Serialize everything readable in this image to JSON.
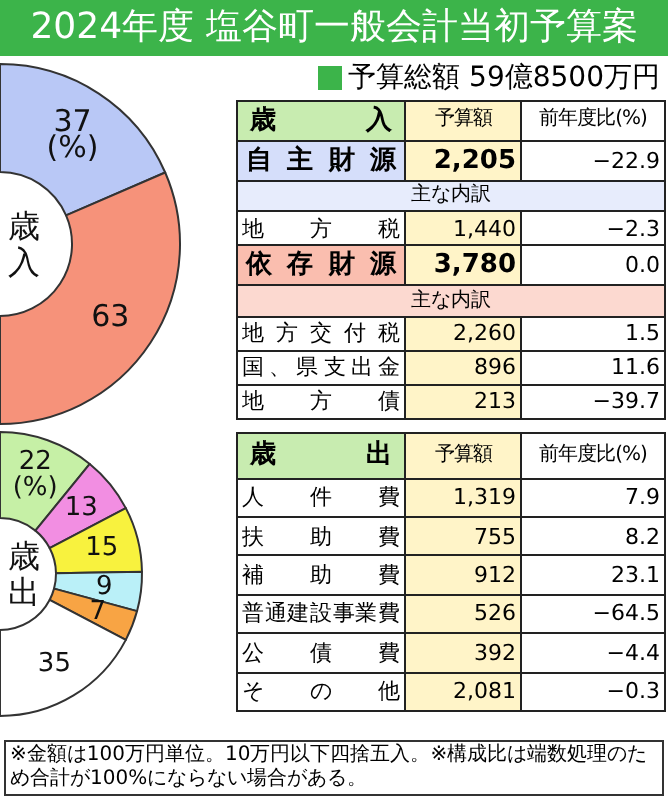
{
  "chart_data": [
    {
      "type": "other",
      "title": "2024年度 塩谷町一般会計当初予算案",
      "subtitle": "予算総額 59億8500万円",
      "color": "#3cb44a",
      "annotations": [
        "※金額は100万円単位。10万円以下四捨五入。",
        "※構成比は端数処理のため合計が100%にならない場合がある。"
      ]
    },
    {
      "type": "donut",
      "title": "歳入",
      "categories": [
        null,
        null
      ],
      "values": [
        37,
        63
      ],
      "colors": [
        "#b9c8f6",
        "#f6927a"
      ],
      "value_labels": [
        "37\n(%)",
        "63"
      ]
    },
    {
      "type": "other",
      "categories": [
        "歳入",
        "予算額",
        "前年度比(%)"
      ],
      "y_categories": [
        "自主財源",
        "主な内訳",
        "地方税",
        "依存財源",
        "主な内訳",
        "地方交付税",
        "国、県支出金",
        "地方債"
      ],
      "cell_labels": [
        [
          "2,205",
          "−22.9"
        ],
        [
          null,
          null
        ],
        [
          "1,440",
          "−2.3"
        ],
        [
          "3,780",
          "0.0"
        ],
        [
          null,
          null
        ],
        [
          "2,260",
          "1.5"
        ],
        [
          "896",
          "11.6"
        ],
        [
          "213",
          "−39.7"
        ]
      ]
    },
    {
      "type": "donut",
      "title": "歳出",
      "categories": [
        null,
        null,
        null,
        null,
        null,
        null
      ],
      "values": [
        22,
        13,
        15,
        9,
        7,
        35
      ],
      "colors": [
        "#c6f0a6",
        "#f28ee2",
        "#f8f23e",
        "#baf0f8",
        "#f8a444",
        "#ffffff"
      ],
      "value_labels": [
        "22\n(%)",
        "13",
        "15",
        "9",
        "7",
        "35"
      ]
    },
    {
      "type": "other",
      "categories": [
        "歳出",
        "予算額",
        "前年度比(%)"
      ],
      "y_categories": [
        "人件費",
        "扶助費",
        "補助費",
        "普通建設事業費",
        "公債費",
        "その他"
      ],
      "cell_labels": [
        [
          "1,319",
          "7.9"
        ],
        [
          "755",
          "8.2"
        ],
        [
          "912",
          "23.1"
        ],
        [
          "526",
          "−64.5"
        ],
        [
          "392",
          "−4.4"
        ],
        [
          "2,081",
          "−0.3"
        ]
      ]
    }
  ]
}
